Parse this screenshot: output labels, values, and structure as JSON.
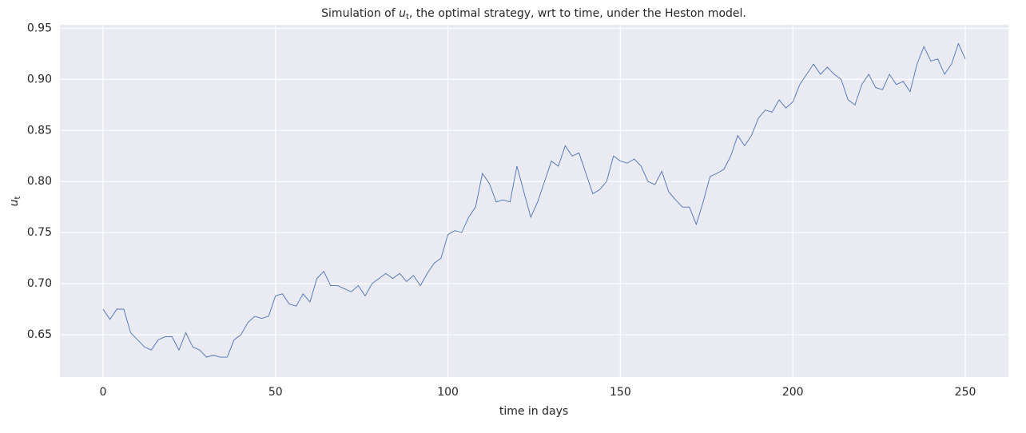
{
  "chart_data": {
    "type": "line",
    "title": [
      "Simulation of ",
      "u",
      "t",
      ", the optimal strategy,  wrt to time, under the Heston model."
    ],
    "xlabel": "time in days",
    "ylabel": [
      "u",
      "t"
    ],
    "x": [
      0,
      2,
      4,
      6,
      8,
      10,
      12,
      14,
      16,
      18,
      20,
      22,
      24,
      26,
      28,
      30,
      32,
      34,
      36,
      38,
      40,
      42,
      44,
      46,
      48,
      50,
      52,
      54,
      56,
      58,
      60,
      62,
      64,
      66,
      68,
      70,
      72,
      74,
      76,
      78,
      80,
      82,
      84,
      86,
      88,
      90,
      92,
      94,
      96,
      98,
      100,
      102,
      104,
      106,
      108,
      110,
      112,
      114,
      116,
      118,
      120,
      122,
      124,
      126,
      128,
      130,
      132,
      134,
      136,
      138,
      140,
      142,
      144,
      146,
      148,
      150,
      152,
      154,
      156,
      158,
      160,
      162,
      164,
      166,
      168,
      170,
      172,
      174,
      176,
      178,
      180,
      182,
      184,
      186,
      188,
      190,
      192,
      194,
      196,
      198,
      200,
      202,
      204,
      206,
      208,
      210,
      212,
      214,
      216,
      218,
      220,
      222,
      224,
      226,
      228,
      230,
      232,
      234,
      236,
      238,
      240,
      242,
      244,
      246,
      248,
      250
    ],
    "values": [
      0.675,
      0.665,
      0.675,
      0.675,
      0.652,
      0.645,
      0.638,
      0.635,
      0.645,
      0.648,
      0.648,
      0.635,
      0.652,
      0.638,
      0.635,
      0.628,
      0.63,
      0.628,
      0.628,
      0.645,
      0.65,
      0.662,
      0.668,
      0.666,
      0.668,
      0.688,
      0.69,
      0.68,
      0.678,
      0.69,
      0.682,
      0.705,
      0.712,
      0.698,
      0.698,
      0.695,
      0.692,
      0.698,
      0.688,
      0.7,
      0.705,
      0.71,
      0.705,
      0.71,
      0.702,
      0.708,
      0.698,
      0.71,
      0.72,
      0.725,
      0.748,
      0.752,
      0.75,
      0.765,
      0.775,
      0.808,
      0.798,
      0.78,
      0.782,
      0.78,
      0.815,
      0.79,
      0.765,
      0.78,
      0.8,
      0.82,
      0.815,
      0.835,
      0.825,
      0.828,
      0.808,
      0.788,
      0.792,
      0.8,
      0.825,
      0.82,
      0.818,
      0.822,
      0.815,
      0.8,
      0.797,
      0.81,
      0.79,
      0.782,
      0.775,
      0.775,
      0.758,
      0.78,
      0.805,
      0.808,
      0.812,
      0.825,
      0.845,
      0.835,
      0.845,
      0.862,
      0.87,
      0.868,
      0.88,
      0.872,
      0.878,
      0.895,
      0.905,
      0.915,
      0.905,
      0.912,
      0.905,
      0.9,
      0.88,
      0.875,
      0.895,
      0.905,
      0.892,
      0.89,
      0.905,
      0.895,
      0.898,
      0.888,
      0.915,
      0.932,
      0.918,
      0.92,
      0.905,
      0.915,
      0.935,
      0.92
    ],
    "color": "#4c72b0",
    "xlim": [
      -12.5,
      262.5
    ],
    "xticks": [
      0,
      50,
      100,
      150,
      200,
      250
    ],
    "ylim": [
      0.6085,
      0.9535
    ],
    "yticks": [
      0.65,
      {
        "value": 0.7,
        "label": "0.70"
      },
      0.75,
      {
        "value": 0.8,
        "label": "0.80"
      },
      0.85,
      {
        "value": 0.9,
        "label": "0.90"
      },
      0.95
    ],
    "grid": true
  }
}
